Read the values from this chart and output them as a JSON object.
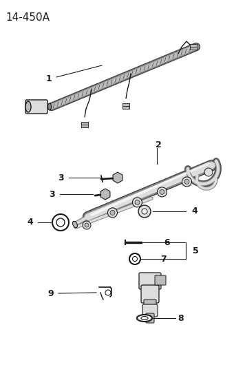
{
  "title": "14-450A",
  "bg_color": "#ffffff",
  "line_color": "#1a1a1a",
  "title_fontsize": 11,
  "label_fontsize": 8,
  "gray_dark": "#444444",
  "gray_mid": "#888888",
  "gray_light": "#bbbbbb",
  "gray_very_light": "#dddddd"
}
